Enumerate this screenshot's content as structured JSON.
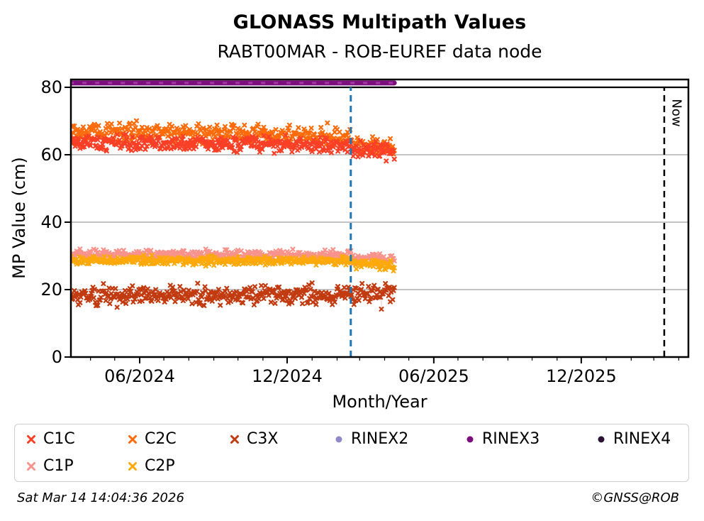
{
  "header": {
    "title": "GLONASS Multipath Values",
    "subtitle": "RABT00MAR - ROB-EUREF data node"
  },
  "footer": {
    "timestamp": "Sat Mar 14 14:04:36 2026",
    "credit": "©GNSS@ROB"
  },
  "chart_data": {
    "type": "scatter",
    "title": "GLONASS Multipath Values",
    "subtitle": "RABT00MAR - ROB-EUREF data node",
    "xlabel": "Month/Year",
    "ylabel": "MP Value (cm)",
    "ylim": [
      0,
      82.3
    ],
    "xlim": [
      "2024-03-08",
      "2026-04-13"
    ],
    "y_ticks": [
      0,
      20,
      40,
      60,
      80
    ],
    "x_ticks": [
      {
        "label": "06/2024",
        "date": "2024-06-01"
      },
      {
        "label": "12/2024",
        "date": "2024-12-01"
      },
      {
        "label": "06/2025",
        "date": "2025-06-01"
      },
      {
        "label": "12/2025",
        "date": "2025-12-01"
      }
    ],
    "grid_y_values": [
      20,
      40,
      60
    ],
    "grid_color": "#b0b0b0",
    "top_rule": {
      "y": 80,
      "color": "#000000"
    },
    "data_window": {
      "start": "2024-03-06",
      "end": "2025-04-13"
    },
    "event_line": {
      "date": "2025-02-18",
      "color": "#1f77b4",
      "style": "dashed"
    },
    "now_line": {
      "date": "2026-03-14",
      "label": "Now",
      "color": "#000000",
      "style": "dashed"
    },
    "series": [
      {
        "name": "C1C",
        "marker": "x",
        "color": "#f93f26",
        "plotted": true,
        "levels": {
          "before": {
            "mean": 63.7,
            "trend": -1.0,
            "spread": 1.1
          },
          "after": {
            "mean": 61.6,
            "spread": 1.2,
            "end_delta": -0.8
          }
        }
      },
      {
        "name": "C2C",
        "marker": "x",
        "color": "#fd6b0a",
        "plotted": true,
        "levels": {
          "before": {
            "mean": 67.0,
            "trend": -1.6,
            "spread": 1.5
          },
          "after": {
            "mean": 62.9,
            "spread": 1.4,
            "end_delta": -1.2
          }
        }
      },
      {
        "name": "C3X",
        "marker": "x",
        "color": "#c23a10",
        "plotted": true,
        "levels": {
          "before": {
            "mean": 18.1,
            "trend": 0.3,
            "spread": 1.4
          },
          "after": {
            "mean": 18.6,
            "spread": 1.7,
            "end_delta": 0
          }
        }
      },
      {
        "name": "C1P",
        "marker": "x",
        "color": "#f7938c",
        "plotted": true,
        "levels": {
          "before": {
            "mean": 30.4,
            "trend": -0.2,
            "spread": 0.75
          },
          "after": {
            "mean": 29.5,
            "spread": 0.85,
            "end_delta": -0.5
          }
        }
      },
      {
        "name": "C2P",
        "marker": "x",
        "color": "#fea90a",
        "plotted": true,
        "levels": {
          "before": {
            "mean": 28.7,
            "trend": -0.3,
            "spread": 0.6
          },
          "after": {
            "mean": 27.8,
            "spread": 0.7,
            "end_delta": -1.0
          }
        }
      },
      {
        "name": "RINEX2",
        "marker": "circle",
        "color": "#8f88c9",
        "plotted": false
      },
      {
        "name": "RINEX3",
        "marker": "circle",
        "color": "#7c0d7e",
        "plotted": true,
        "constant_value": 81.3
      },
      {
        "name": "RINEX4",
        "marker": "circle",
        "color": "#2c1333",
        "plotted": false
      }
    ],
    "legend": [
      {
        "label": "C1C",
        "row": 0,
        "col": 0
      },
      {
        "label": "C2C",
        "row": 0,
        "col": 1
      },
      {
        "label": "C3X",
        "row": 0,
        "col": 2
      },
      {
        "label": "RINEX2",
        "row": 0,
        "col": 3
      },
      {
        "label": "RINEX3",
        "row": 0,
        "col": 4
      },
      {
        "label": "RINEX4",
        "row": 0,
        "col": 5
      },
      {
        "label": "C1P",
        "row": 1,
        "col": 0
      },
      {
        "label": "C2P",
        "row": 1,
        "col": 1
      }
    ]
  }
}
